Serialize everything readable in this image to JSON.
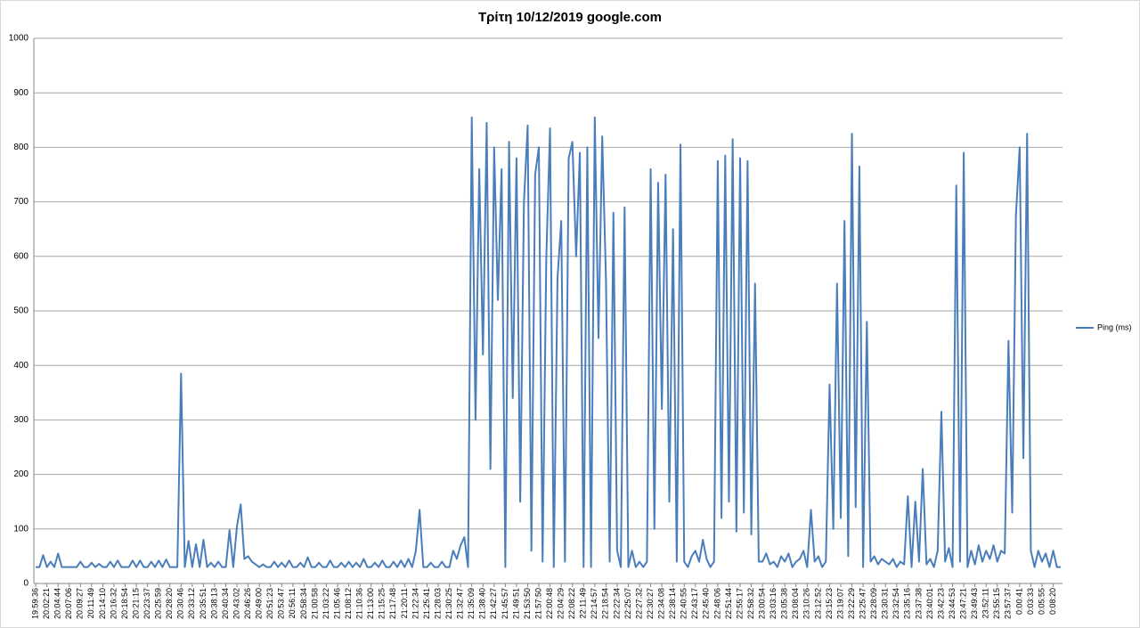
{
  "chart_data": {
    "type": "line",
    "title": "Τρίτη 10/12/2019 google.com",
    "categories": [
      "19:59:36",
      null,
      null,
      "20:02:21",
      null,
      null,
      "20:04:44",
      null,
      null,
      "20:07:06",
      null,
      null,
      "20:09:27",
      null,
      null,
      "20:11:49",
      null,
      null,
      "20:14:10",
      null,
      null,
      "20:16:32",
      null,
      null,
      "20:18:54",
      null,
      null,
      "20:21:15",
      null,
      null,
      "20:23:37",
      null,
      null,
      "20:25:59",
      null,
      null,
      "20:28:20",
      null,
      null,
      "20:30:46",
      null,
      null,
      "20:33:12",
      null,
      null,
      "20:35:51",
      null,
      null,
      "20:38:13",
      null,
      null,
      "20:40:34",
      null,
      null,
      "20:43:02",
      null,
      null,
      "20:46:26",
      null,
      null,
      "20:49:00",
      null,
      null,
      "20:51:23",
      null,
      null,
      "20:53:47",
      null,
      null,
      "20:56:11",
      null,
      null,
      "20:58:34",
      null,
      null,
      "21:00:58",
      null,
      null,
      "21:03:22",
      null,
      null,
      "21:05:46",
      null,
      null,
      "21:08:12",
      null,
      null,
      "21:10:36",
      null,
      null,
      "21:13:00",
      null,
      null,
      "21:15:25",
      null,
      null,
      "21:17:48",
      null,
      null,
      "21:20:11",
      null,
      null,
      "21:22:34",
      null,
      null,
      "21:25:41",
      null,
      null,
      "21:28:03",
      null,
      null,
      "21:30:25",
      null,
      null,
      "21:32:47",
      null,
      null,
      "21:35:09",
      null,
      null,
      "21:38:40",
      null,
      null,
      "21:42:27",
      null,
      null,
      "21:45:57",
      null,
      null,
      "21:49:51",
      null,
      null,
      "21:53:50",
      null,
      null,
      "21:57:50",
      null,
      null,
      "22:00:48",
      null,
      null,
      "22:04:29",
      null,
      null,
      "22:08:22",
      null,
      null,
      "22:11:49",
      null,
      null,
      "22:14:57",
      null,
      null,
      "22:18:54",
      null,
      null,
      "22:22:34",
      null,
      null,
      "22:25:07",
      null,
      null,
      "22:27:32",
      null,
      null,
      "22:30:27",
      null,
      null,
      "22:34:08",
      null,
      null,
      "22:38:14",
      null,
      null,
      "22:40:55",
      null,
      null,
      "22:43:17",
      null,
      null,
      "22:45:40",
      null,
      null,
      "22:48:06",
      null,
      null,
      "22:51:44",
      null,
      null,
      "22:55:17",
      null,
      null,
      "22:58:32",
      null,
      null,
      "23:00:54",
      null,
      null,
      "23:03:16",
      null,
      null,
      "23:05:38",
      null,
      null,
      "23:08:04",
      null,
      null,
      "23:10:26",
      null,
      null,
      "23:12:52",
      null,
      null,
      "23:15:23",
      null,
      null,
      "23:19:07",
      null,
      null,
      "23:22:29",
      null,
      null,
      "23:25:47",
      null,
      null,
      "23:28:09",
      null,
      null,
      "23:30:31",
      null,
      null,
      "23:32:54",
      null,
      null,
      "23:35:16",
      null,
      null,
      "23:37:38",
      null,
      null,
      "23:40:01",
      null,
      null,
      "23:42:23",
      null,
      null,
      "23:44:53",
      null,
      null,
      "23:47:21",
      null,
      null,
      "23:49:43",
      null,
      null,
      "23:52:11",
      null,
      null,
      "23:55:15",
      null,
      null,
      "23:57:37",
      null,
      null,
      "0:00:41",
      null,
      null,
      "0:03:33",
      null,
      null,
      "0:05:55",
      null,
      null,
      "0:08:20",
      null,
      null
    ],
    "series": [
      {
        "name": "Ping (ms)",
        "color": "#4a7ebb",
        "values": [
          30,
          30,
          52,
          30,
          40,
          30,
          55,
          30,
          30,
          30,
          30,
          30,
          40,
          30,
          30,
          38,
          30,
          36,
          30,
          30,
          40,
          30,
          42,
          30,
          30,
          30,
          42,
          30,
          42,
          30,
          30,
          40,
          30,
          42,
          30,
          44,
          30,
          30,
          30,
          385,
          30,
          78,
          30,
          72,
          30,
          80,
          30,
          38,
          30,
          40,
          30,
          30,
          98,
          30,
          105,
          145,
          45,
          50,
          40,
          35,
          30,
          35,
          30,
          30,
          40,
          30,
          38,
          30,
          42,
          30,
          30,
          38,
          30,
          48,
          30,
          30,
          38,
          30,
          30,
          42,
          30,
          30,
          38,
          30,
          40,
          30,
          38,
          30,
          45,
          30,
          30,
          38,
          30,
          42,
          30,
          30,
          40,
          30,
          42,
          30,
          45,
          30,
          60,
          135,
          30,
          30,
          38,
          30,
          30,
          40,
          30,
          30,
          60,
          45,
          70,
          85,
          30,
          855,
          300,
          760,
          420,
          845,
          210,
          800,
          520,
          760,
          30,
          810,
          340,
          780,
          150,
          700,
          840,
          60,
          750,
          800,
          40,
          600,
          835,
          30,
          560,
          665,
          40,
          780,
          810,
          600,
          790,
          30,
          800,
          30,
          855,
          450,
          820,
          560,
          40,
          680,
          60,
          30,
          690,
          30,
          60,
          30,
          40,
          30,
          40,
          760,
          100,
          735,
          320,
          750,
          150,
          650,
          40,
          805,
          40,
          30,
          50,
          60,
          40,
          80,
          45,
          30,
          40,
          775,
          120,
          785,
          150,
          815,
          95,
          780,
          130,
          775,
          90,
          550,
          40,
          40,
          55,
          35,
          40,
          30,
          50,
          40,
          55,
          30,
          40,
          45,
          60,
          30,
          135,
          40,
          50,
          30,
          40,
          365,
          100,
          550,
          120,
          665,
          50,
          825,
          140,
          765,
          30,
          480,
          40,
          50,
          35,
          45,
          40,
          35,
          45,
          30,
          40,
          35,
          160,
          30,
          150,
          40,
          210,
          35,
          45,
          30,
          60,
          315,
          40,
          65,
          30,
          730,
          40,
          790,
          30,
          60,
          35,
          70,
          40,
          60,
          45,
          70,
          40,
          60,
          55,
          445,
          130,
          675,
          800,
          230,
          825,
          60,
          30,
          60,
          40,
          55,
          30,
          60,
          30,
          30
        ]
      }
    ],
    "ylim": [
      0,
      1000
    ],
    "yticks": [
      0,
      100,
      200,
      300,
      400,
      500,
      600,
      700,
      800,
      900,
      1000
    ],
    "grid": true,
    "legend": "right"
  }
}
